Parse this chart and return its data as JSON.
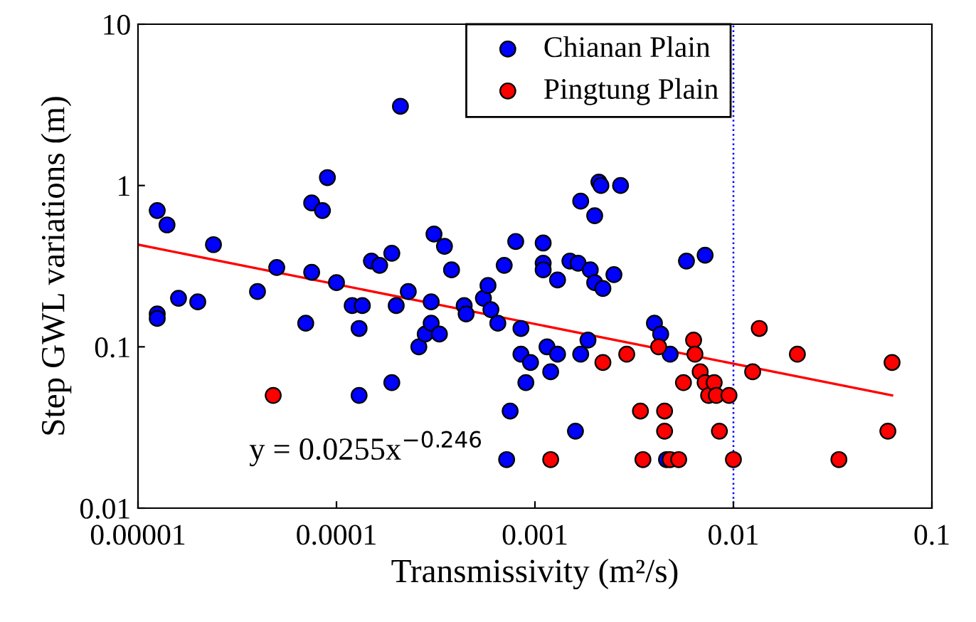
{
  "chart_data": {
    "type": "scatter",
    "xlabel": "Transmissivity (m²/s)",
    "ylabel": "Step GWL variations (m)",
    "log": "xy",
    "xlim": [
      1e-05,
      0.1
    ],
    "ylim": [
      0.01,
      10
    ],
    "xticks": [
      {
        "value": 1e-05,
        "label": "0.00001"
      },
      {
        "value": 0.0001,
        "label": "0.0001"
      },
      {
        "value": 0.001,
        "label": "0.001"
      },
      {
        "value": 0.01,
        "label": "0.01"
      },
      {
        "value": 0.1,
        "label": "0.1"
      }
    ],
    "yticks": [
      {
        "value": 0.01,
        "label": "0.01"
      },
      {
        "value": 0.1,
        "label": "0.1"
      },
      {
        "value": 1,
        "label": "1"
      },
      {
        "value": 10,
        "label": "10"
      }
    ],
    "grid": false,
    "legend": "top",
    "marker": "circle",
    "series": [
      {
        "name": "Chianan Plain",
        "color": "#0000ff",
        "x": [
          1.25e-05,
          1.4e-05,
          1.25e-05,
          1.25e-05,
          1.6e-05,
          2e-05,
          2.4e-05,
          4e-05,
          5e-05,
          7e-05,
          7.5e-05,
          8.5e-05,
          9e-05,
          7.5e-05,
          0.0001,
          0.00012,
          0.000135,
          0.00013,
          0.00013,
          0.00015,
          0.000165,
          0.00019,
          0.00019,
          0.00021,
          0.0002,
          0.00023,
          0.00026,
          0.00028,
          0.0003,
          0.00031,
          0.00035,
          0.00033,
          0.0003,
          0.00038,
          0.00044,
          0.00045,
          0.00055,
          0.00058,
          0.0006,
          0.00065,
          0.0007,
          0.00072,
          0.00075,
          0.0008,
          0.00085,
          0.00085,
          0.0009,
          0.00095,
          0.0011,
          0.0011,
          0.0011,
          0.00115,
          0.0012,
          0.0013,
          0.0013,
          0.0015,
          0.0016,
          0.00165,
          0.0017,
          0.0017,
          0.00185,
          0.0019,
          0.002,
          0.002,
          0.0021,
          0.00215,
          0.0022,
          0.0025,
          0.0027,
          0.004,
          0.0043,
          0.0046,
          0.0048,
          0.0058,
          0.0072
        ],
        "values": [
          0.7,
          0.57,
          0.16,
          0.15,
          0.2,
          0.19,
          0.43,
          0.22,
          0.31,
          0.14,
          0.78,
          0.7,
          1.12,
          0.29,
          0.25,
          0.18,
          0.18,
          0.13,
          0.05,
          0.34,
          0.32,
          0.38,
          0.06,
          3.1,
          0.18,
          0.22,
          0.1,
          0.12,
          0.14,
          0.5,
          0.42,
          0.12,
          0.19,
          0.3,
          0.18,
          0.16,
          0.2,
          0.24,
          0.17,
          0.14,
          0.32,
          0.02,
          0.04,
          0.45,
          0.09,
          0.13,
          0.06,
          0.08,
          0.44,
          0.33,
          0.3,
          0.1,
          0.07,
          0.26,
          0.09,
          0.34,
          0.03,
          0.33,
          0.8,
          0.09,
          0.11,
          0.3,
          0.65,
          0.25,
          1.05,
          1.0,
          0.23,
          0.28,
          1.0,
          0.14,
          0.12,
          0.02,
          0.09,
          0.34,
          0.37
        ]
      },
      {
        "name": "Pingtung Plain",
        "color": "#ff0000",
        "x": [
          4.8e-05,
          0.0012,
          0.0022,
          0.0029,
          0.0034,
          0.0035,
          0.0042,
          0.0045,
          0.0045,
          0.0048,
          0.0053,
          0.0056,
          0.0063,
          0.0064,
          0.0068,
          0.0072,
          0.0075,
          0.008,
          0.0082,
          0.0085,
          0.0095,
          0.01,
          0.0125,
          0.0135,
          0.021,
          0.034,
          0.06,
          0.063
        ],
        "values": [
          0.05,
          0.02,
          0.08,
          0.09,
          0.04,
          0.02,
          0.1,
          0.04,
          0.03,
          0.02,
          0.02,
          0.06,
          0.11,
          0.09,
          0.07,
          0.06,
          0.05,
          0.06,
          0.05,
          0.03,
          0.05,
          0.02,
          0.07,
          0.13,
          0.09,
          0.02,
          0.03,
          0.08
        ]
      },
      {
        "type": "line",
        "color": "#ff0000",
        "marker": "none",
        "x": [
          1e-05,
          0.063
        ],
        "values": [
          0.43,
          0.05
        ]
      }
    ],
    "ref_lines": [
      {
        "axis": "x",
        "value": 0.01,
        "color": "#0000ff",
        "line_style": "dotted"
      }
    ],
    "annotations": [
      "y = 0.0255x$^{−0.246}$"
    ]
  }
}
